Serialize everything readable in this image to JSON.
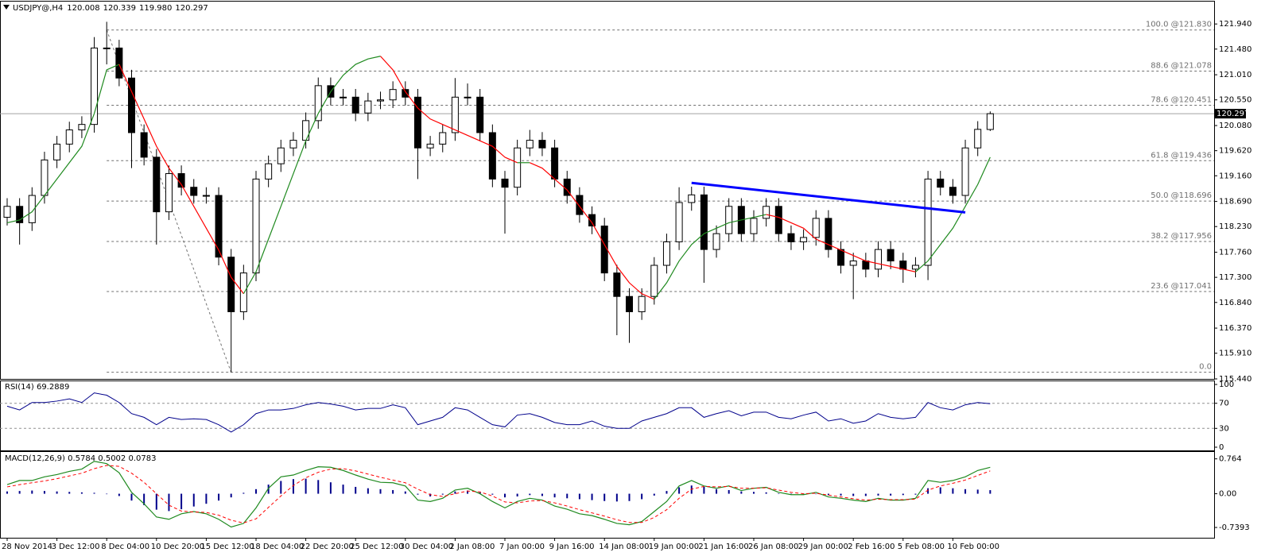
{
  "chart_data": [
    {
      "type": "candlestick",
      "title": "USDJPY@,H4",
      "header_values": [
        "120.008",
        "120.339",
        "119.980",
        "120.297"
      ],
      "categories": [
        "28 Nov 2014",
        null,
        null,
        null,
        "3 Dec 12:00",
        null,
        null,
        null,
        "8 Dec 04:00",
        null,
        null,
        null,
        "10 Dec 20:00",
        null,
        null,
        null,
        "15 Dec 12:00",
        null,
        null,
        null,
        "18 Dec 04:00",
        null,
        null,
        null,
        "22 Dec 20:00",
        null,
        null,
        null,
        "25 Dec 12:00",
        null,
        null,
        null,
        "30 Dec 04:00",
        null,
        null,
        null,
        "2 Jan 08:00",
        null,
        null,
        null,
        "7 Jan 00:00",
        null,
        null,
        null,
        "9 Jan 16:00",
        null,
        null,
        null,
        "14 Jan 08:00",
        null,
        null,
        null,
        "19 Jan 00:00",
        null,
        null,
        null,
        "21 Jan 16:00",
        null,
        null,
        null,
        "26 Jan 08:00",
        null,
        null,
        null,
        "29 Jan 00:00",
        null,
        null,
        null,
        "2 Feb 16:00",
        null,
        null,
        null,
        "5 Feb 08:00",
        null,
        null,
        null,
        "10 Feb 00:00",
        null,
        null,
        null
      ],
      "open": [
        118.4,
        118.6,
        118.3,
        118.8,
        119.45,
        119.74,
        120.0,
        120.1,
        121.5,
        121.5,
        120.95,
        119.95,
        119.5,
        118.5,
        119.2,
        118.95,
        118.8,
        118.8,
        117.67,
        116.67,
        117.38,
        119.1,
        119.38,
        119.67,
        119.81,
        120.17,
        120.81,
        120.6,
        120.6,
        120.31,
        120.53,
        120.55,
        120.74,
        120.6,
        119.67,
        119.74,
        119.95,
        120.6,
        120.6,
        119.95,
        119.1,
        118.95,
        119.67,
        119.81,
        119.67,
        119.1,
        118.8,
        118.45,
        118.24,
        117.38,
        116.95,
        116.67,
        116.95,
        117.52,
        117.95,
        118.67,
        118.81,
        117.81,
        118.1,
        118.6,
        118.1,
        118.38,
        118.6,
        118.1,
        117.95,
        118.03,
        118.38,
        117.81,
        117.52,
        117.6,
        117.45,
        117.81,
        117.6,
        117.45,
        117.52,
        119.1,
        118.95,
        118.8,
        119.67,
        120.008
      ],
      "high": [
        118.75,
        118.75,
        118.95,
        119.6,
        119.89,
        120.15,
        120.25,
        121.7,
        121.98,
        121.65,
        121.1,
        120.1,
        119.65,
        119.35,
        119.35,
        119.1,
        118.95,
        118.95,
        117.82,
        117.53,
        119.25,
        119.53,
        119.82,
        119.96,
        120.32,
        120.96,
        120.96,
        120.75,
        120.75,
        120.68,
        120.7,
        120.89,
        120.89,
        120.75,
        119.89,
        120.1,
        120.95,
        120.85,
        120.75,
        120.1,
        119.25,
        119.82,
        120.0,
        119.96,
        119.82,
        119.25,
        118.95,
        118.6,
        118.39,
        117.53,
        117.1,
        117.1,
        117.67,
        118.1,
        118.95,
        118.96,
        118.96,
        118.25,
        118.75,
        118.75,
        118.53,
        118.75,
        118.75,
        118.25,
        118.18,
        118.53,
        118.53,
        117.96,
        117.75,
        117.75,
        117.96,
        117.96,
        117.75,
        117.67,
        119.25,
        119.25,
        119.1,
        119.82,
        120.16,
        120.339
      ],
      "low": [
        118.25,
        117.9,
        118.15,
        118.65,
        119.3,
        119.59,
        119.85,
        119.95,
        121.2,
        120.8,
        119.3,
        119.35,
        117.9,
        118.35,
        118.8,
        118.65,
        118.65,
        117.52,
        115.56,
        116.52,
        117.23,
        118.95,
        119.23,
        119.52,
        119.66,
        120.02,
        120.45,
        120.45,
        120.16,
        120.16,
        120.38,
        120.4,
        120.45,
        119.1,
        119.52,
        119.59,
        119.8,
        120.45,
        119.8,
        118.95,
        118.1,
        118.8,
        119.52,
        119.52,
        118.95,
        118.65,
        118.3,
        118.09,
        117.23,
        116.24,
        116.1,
        116.52,
        116.8,
        117.37,
        117.8,
        118.52,
        117.2,
        117.66,
        117.95,
        117.95,
        117.95,
        118.23,
        117.95,
        117.8,
        117.8,
        117.88,
        117.66,
        117.37,
        116.9,
        117.3,
        117.3,
        117.45,
        117.2,
        117.3,
        117.25,
        118.8,
        118.65,
        118.65,
        119.52,
        119.98
      ],
      "close": [
        118.6,
        118.3,
        118.8,
        119.45,
        119.74,
        120.0,
        120.1,
        121.5,
        121.5,
        120.95,
        119.95,
        119.5,
        118.5,
        119.2,
        118.95,
        118.8,
        118.8,
        117.67,
        116.67,
        117.38,
        119.1,
        119.38,
        119.67,
        119.81,
        120.17,
        120.81,
        120.6,
        120.6,
        120.31,
        120.53,
        120.55,
        120.74,
        120.6,
        119.67,
        119.74,
        119.95,
        120.6,
        120.6,
        119.95,
        119.1,
        118.95,
        119.67,
        119.81,
        119.67,
        119.1,
        118.8,
        118.45,
        118.24,
        117.38,
        116.95,
        116.67,
        116.95,
        117.52,
        117.95,
        118.67,
        118.81,
        117.81,
        118.1,
        118.6,
        118.1,
        118.38,
        118.6,
        118.1,
        117.95,
        118.03,
        118.38,
        117.81,
        117.52,
        117.6,
        117.45,
        117.81,
        117.6,
        117.45,
        117.52,
        119.1,
        118.95,
        118.8,
        119.67,
        120.01,
        120.297
      ],
      "up_color": "#ffffff",
      "down_color": "#000000",
      "ylim": [
        115.44,
        122.35
      ],
      "yticks": [
        {
          "value": 121.94,
          "label": "121.940"
        },
        {
          "value": 121.48,
          "label": "121.480"
        },
        {
          "value": 121.01,
          "label": "121.010"
        },
        {
          "value": 120.55,
          "label": "120.550"
        },
        {
          "value": 120.08,
          "label": "120.080"
        },
        {
          "value": 119.62,
          "label": "119.620"
        },
        {
          "value": 119.16,
          "label": "119.160"
        },
        {
          "value": 118.69,
          "label": "118.690"
        },
        {
          "value": 118.23,
          "label": "118.230"
        },
        {
          "value": 117.76,
          "label": "117.760"
        },
        {
          "value": 117.3,
          "label": "117.300"
        },
        {
          "value": 116.84,
          "label": "116.840"
        },
        {
          "value": 116.37,
          "label": "116.370"
        },
        {
          "value": 115.91,
          "label": "115.910"
        },
        {
          "value": 115.44,
          "label": "115.440"
        }
      ],
      "ma": {
        "up_color": "#1f8a1f",
        "down_color": "#ff0000",
        "values": [
          118.3,
          118.35,
          118.5,
          118.8,
          119.1,
          119.4,
          119.7,
          120.3,
          121.1,
          121.2,
          120.7,
          120.2,
          119.7,
          119.3,
          119.0,
          118.6,
          118.2,
          117.8,
          117.3,
          117.0,
          117.4,
          118.0,
          118.6,
          119.2,
          119.8,
          120.3,
          120.7,
          121.0,
          121.2,
          121.3,
          121.35,
          121.1,
          120.7,
          120.4,
          120.2,
          120.1,
          120.0,
          119.9,
          119.8,
          119.7,
          119.5,
          119.4,
          119.4,
          119.3,
          119.1,
          118.9,
          118.6,
          118.3,
          117.9,
          117.5,
          117.2,
          117.0,
          116.9,
          117.2,
          117.6,
          117.9,
          118.1,
          118.2,
          118.3,
          118.35,
          118.4,
          118.45,
          118.4,
          118.3,
          118.2,
          118.0,
          117.9,
          117.8,
          117.7,
          117.6,
          117.55,
          117.5,
          117.45,
          117.4,
          117.6,
          117.9,
          118.2,
          118.6,
          119.0,
          119.5
        ]
      },
      "last_price": 120.297,
      "fibonacci": {
        "start_index": 8,
        "end_index": 18,
        "levels": [
          {
            "label": "100.0 @121.830",
            "price": 121.83
          },
          {
            "label": "88.6 @121.078",
            "price": 121.078
          },
          {
            "label": "78.6 @120.451",
            "price": 120.451
          },
          {
            "label": "61.8 @119.436",
            "price": 119.436
          },
          {
            "label": "50.0 @118.696",
            "price": 118.696
          },
          {
            "label": "38.2 @117.956",
            "price": 117.956
          },
          {
            "label": "23.6 @117.041",
            "price": 117.041
          },
          {
            "label": "0.0",
            "price": 115.562
          }
        ]
      },
      "trendline": {
        "color": "#0000ff",
        "start": [
          55,
          119.03
        ],
        "end": [
          77,
          118.49
        ]
      }
    },
    {
      "type": "rsi",
      "title": "RSI(14) 69.2889",
      "color": "#00008b",
      "values": [
        65.3,
        59.4,
        71.2,
        71.2,
        73.5,
        77.1,
        71.2,
        86.5,
        82.9,
        71.2,
        53.5,
        47.6,
        35.9,
        47.6,
        44.1,
        45.3,
        44.1,
        35.9,
        24.1,
        35.9,
        53.5,
        59.4,
        59.4,
        61.8,
        67.6,
        71.2,
        68.8,
        65.3,
        59.4,
        61.8,
        61.8,
        67.6,
        62.9,
        35.9,
        41.8,
        47.6,
        62.9,
        59.4,
        47.6,
        35.9,
        32.4,
        51.2,
        53.5,
        47.6,
        39.4,
        35.9,
        35.9,
        41.8,
        33.5,
        30.0,
        30.0,
        41.8,
        47.6,
        53.5,
        62.9,
        62.9,
        47.6,
        53.5,
        58.2,
        50.0,
        55.9,
        55.9,
        47.6,
        45.3,
        51.2,
        55.9,
        41.8,
        45.3,
        38.2,
        41.8,
        53.5,
        47.6,
        45.3,
        47.6,
        71.2,
        62.9,
        59.4,
        67.6,
        71.2,
        69.2889
      ],
      "ylim": [
        0,
        100
      ],
      "yticks": [
        100,
        70,
        30,
        0
      ],
      "levels": [
        70,
        30
      ]
    },
    {
      "type": "macd",
      "title": "MACD(12,26,9) 0.5784 0.5002 0.0783",
      "histogram": {
        "color": "#00008b",
        "values": [
          0.05,
          0.06,
          0.07,
          0.06,
          0.05,
          0.04,
          0.03,
          0.02,
          -0.01,
          -0.05,
          -0.15,
          -0.25,
          -0.35,
          -0.38,
          -0.34,
          -0.28,
          -0.22,
          -0.15,
          -0.08,
          0.02,
          0.1,
          0.2,
          0.28,
          0.32,
          0.33,
          0.3,
          0.25,
          0.2,
          0.15,
          0.12,
          0.1,
          0.08,
          0.05,
          -0.02,
          -0.06,
          -0.02,
          0.05,
          0.07,
          0.03,
          -0.02,
          -0.08,
          -0.06,
          -0.03,
          -0.05,
          -0.08,
          -0.1,
          -0.12,
          -0.14,
          -0.16,
          -0.17,
          -0.16,
          -0.12,
          -0.04,
          0.06,
          0.14,
          0.18,
          0.15,
          0.1,
          0.08,
          0.05,
          0.04,
          0.03,
          0.01,
          -0.01,
          -0.02,
          -0.01,
          -0.03,
          -0.04,
          -0.05,
          -0.05,
          -0.04,
          -0.04,
          -0.03,
          -0.02,
          0.12,
          0.14,
          0.12,
          0.1,
          0.09,
          0.0783
        ]
      },
      "main": {
        "color": "#1f8a1f",
        "values": [
          0.2,
          0.29,
          0.29,
          0.37,
          0.42,
          0.49,
          0.54,
          0.71,
          0.66,
          0.46,
          0.03,
          -0.22,
          -0.51,
          -0.56,
          -0.44,
          -0.39,
          -0.44,
          -0.56,
          -0.73,
          -0.65,
          -0.31,
          0.12,
          0.37,
          0.41,
          0.51,
          0.59,
          0.58,
          0.51,
          0.41,
          0.32,
          0.25,
          0.24,
          0.17,
          -0.14,
          -0.17,
          -0.1,
          0.08,
          0.12,
          0.0,
          -0.17,
          -0.31,
          -0.17,
          -0.1,
          -0.14,
          -0.27,
          -0.34,
          -0.44,
          -0.48,
          -0.56,
          -0.65,
          -0.68,
          -0.61,
          -0.39,
          -0.17,
          0.17,
          0.29,
          0.17,
          0.12,
          0.17,
          0.07,
          0.12,
          0.14,
          0.03,
          -0.02,
          -0.02,
          0.03,
          -0.07,
          -0.1,
          -0.14,
          -0.17,
          -0.1,
          -0.14,
          -0.14,
          -0.1,
          0.29,
          0.25,
          0.29,
          0.37,
          0.51,
          0.5784
        ]
      },
      "signal": {
        "color": "#ff0000",
        "values": [
          0.15,
          0.2,
          0.24,
          0.28,
          0.33,
          0.39,
          0.45,
          0.55,
          0.62,
          0.6,
          0.45,
          0.25,
          0.0,
          -0.25,
          -0.38,
          -0.4,
          -0.41,
          -0.47,
          -0.58,
          -0.64,
          -0.55,
          -0.3,
          -0.05,
          0.18,
          0.35,
          0.47,
          0.54,
          0.55,
          0.5,
          0.43,
          0.36,
          0.3,
          0.24,
          0.1,
          -0.02,
          -0.06,
          0.0,
          0.06,
          0.04,
          -0.05,
          -0.18,
          -0.2,
          -0.16,
          -0.15,
          -0.2,
          -0.27,
          -0.35,
          -0.42,
          -0.49,
          -0.57,
          -0.63,
          -0.63,
          -0.52,
          -0.35,
          -0.1,
          0.1,
          0.16,
          0.15,
          0.16,
          0.12,
          0.12,
          0.13,
          0.08,
          0.03,
          0.0,
          0.01,
          -0.03,
          -0.07,
          -0.11,
          -0.14,
          -0.12,
          -0.13,
          -0.13,
          -0.12,
          0.08,
          0.17,
          0.23,
          0.3,
          0.4,
          0.5002
        ]
      },
      "ylim": [
        -0.93,
        0.88
      ],
      "yticks": [
        0.764,
        {
          "value": 0,
          "label": "0.00"
        },
        -0.7393
      ]
    }
  ]
}
